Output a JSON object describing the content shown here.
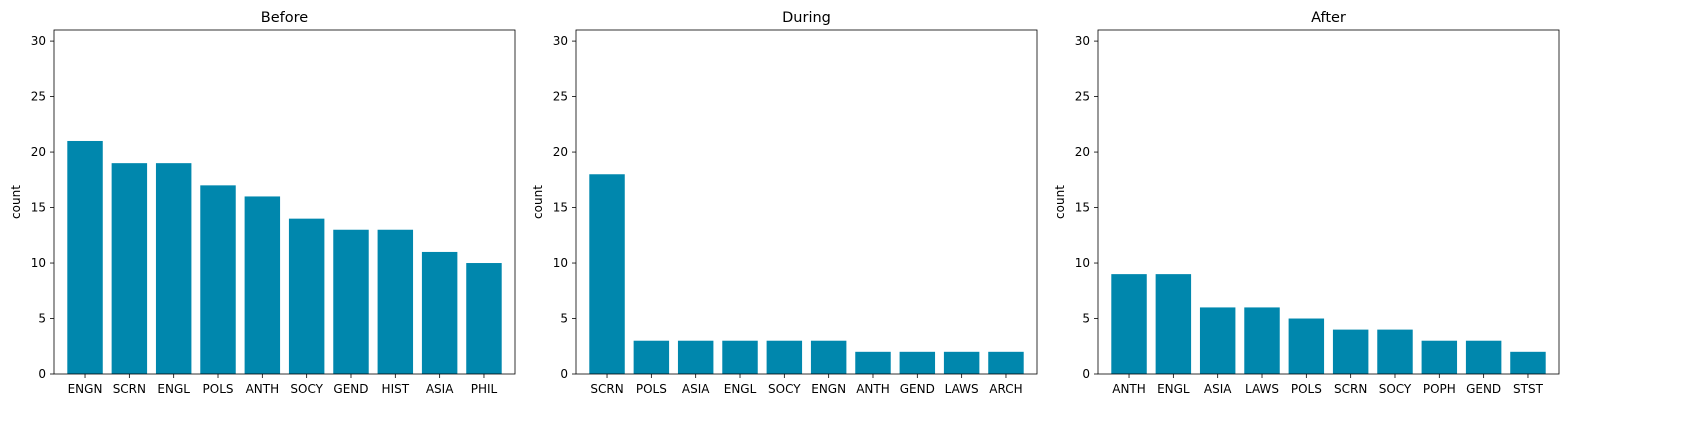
{
  "chart_data": [
    {
      "type": "bar",
      "title": "Before",
      "ylabel": "count",
      "ylim": [
        0,
        31
      ],
      "yticks": [
        0,
        5,
        10,
        15,
        20,
        25,
        30
      ],
      "categories": [
        "ENGN",
        "SCRN",
        "ENGL",
        "POLS",
        "ANTH",
        "SOCY",
        "GEND",
        "HIST",
        "ASIA",
        "PHIL"
      ],
      "values": [
        21,
        19,
        19,
        17,
        16,
        14,
        13,
        13,
        11,
        10
      ],
      "bar_color": "#0087ad"
    },
    {
      "type": "bar",
      "title": "During",
      "ylabel": "count",
      "ylim": [
        0,
        31
      ],
      "yticks": [
        0,
        5,
        10,
        15,
        20,
        25,
        30
      ],
      "categories": [
        "SCRN",
        "POLS",
        "ASIA",
        "ENGL",
        "SOCY",
        "ENGN",
        "ANTH",
        "GEND",
        "LAWS",
        "ARCH"
      ],
      "values": [
        18,
        3,
        3,
        3,
        3,
        3,
        2,
        2,
        2,
        2
      ],
      "bar_color": "#0087ad"
    },
    {
      "type": "bar",
      "title": "After",
      "ylabel": "count",
      "ylim": [
        0,
        31
      ],
      "yticks": [
        0,
        5,
        10,
        15,
        20,
        25,
        30
      ],
      "categories": [
        "ANTH",
        "ENGL",
        "ASIA",
        "LAWS",
        "POLS",
        "SCRN",
        "SOCY",
        "POPH",
        "GEND",
        "STST"
      ],
      "values": [
        9,
        9,
        6,
        6,
        5,
        4,
        4,
        3,
        3,
        2
      ],
      "bar_color": "#0087ad"
    }
  ]
}
